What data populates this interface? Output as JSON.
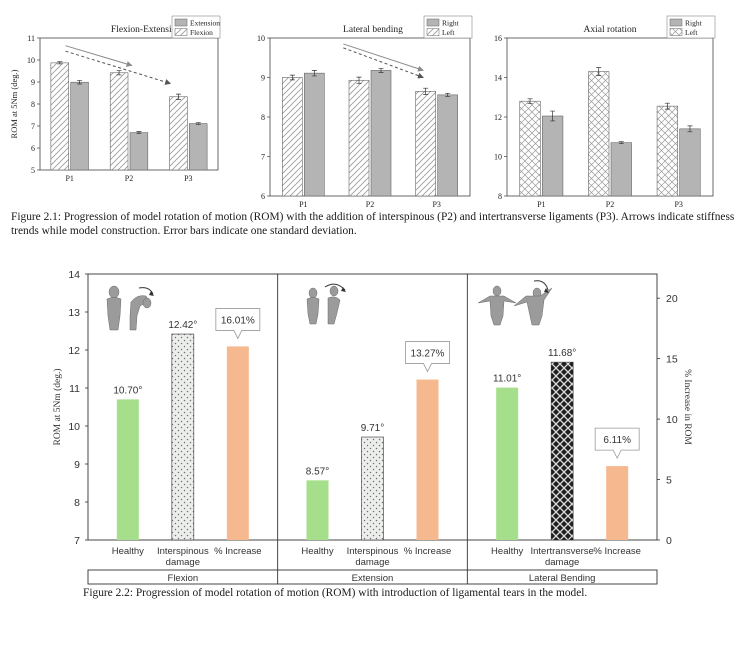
{
  "top": {
    "ylabel": "ROM at 5Nm (deg.)",
    "panels": [
      {
        "title": "Flexion-Extension",
        "ylim": [
          5,
          11
        ],
        "yticks": [
          5,
          6,
          7,
          8,
          9,
          10,
          11
        ],
        "categories": [
          "P1",
          "P2",
          "P3"
        ],
        "series": [
          {
            "name": "Flexion",
            "pattern": "diag",
            "values": [
              9.87,
              9.42,
              8.33
            ],
            "errors": [
              0.05,
              0.1,
              0.12
            ]
          },
          {
            "name": "Extension",
            "pattern": "solid",
            "values": [
              8.99,
              6.7,
              7.11
            ],
            "errors": [
              0.08,
              0.05,
              0.04
            ]
          }
        ],
        "legend_order": [
          "Extension",
          "Flexion"
        ],
        "arrows": [
          {
            "style": "solid",
            "from": [
              0.43,
              10.65
            ],
            "to": [
              1.55,
              9.75
            ]
          },
          {
            "style": "dashed",
            "from": [
              0.43,
              10.4
            ],
            "to": [
              2.2,
              8.93
            ]
          }
        ]
      },
      {
        "title": "Lateral bending",
        "ylim": [
          6,
          10
        ],
        "yticks": [
          6,
          7,
          8,
          9,
          10
        ],
        "categories": [
          "P1",
          "P2",
          "P3"
        ],
        "series": [
          {
            "name": "Left",
            "pattern": "diag",
            "values": [
              9.0,
              8.93,
              8.65
            ],
            "errors": [
              0.06,
              0.08,
              0.08
            ]
          },
          {
            "name": "Right",
            "pattern": "solid",
            "values": [
              9.11,
              9.18,
              8.56
            ],
            "errors": [
              0.07,
              0.05,
              0.04
            ]
          }
        ],
        "legend_order": [
          "Right",
          "Left"
        ],
        "arrows": [
          {
            "style": "solid",
            "from": [
              1.1,
              9.85
            ],
            "to": [
              2.3,
              9.18
            ]
          },
          {
            "style": "dashed",
            "from": [
              1.1,
              9.75
            ],
            "to": [
              2.3,
              9.0
            ]
          }
        ]
      },
      {
        "title": "Axial rotation",
        "ylim": [
          8,
          16
        ],
        "yticks": [
          8,
          10,
          12,
          14,
          16
        ],
        "categories": [
          "P1",
          "P2",
          "P3"
        ],
        "series": [
          {
            "name": "Left",
            "pattern": "cross",
            "values": [
              12.8,
              14.3,
              12.55
            ],
            "errors": [
              0.12,
              0.2,
              0.15
            ]
          },
          {
            "name": "Right",
            "pattern": "solid",
            "values": [
              12.05,
              10.7,
              11.4
            ],
            "errors": [
              0.25,
              0.05,
              0.15
            ]
          }
        ],
        "legend_order": [
          "Right",
          "Left"
        ],
        "arrows": []
      }
    ],
    "caption": "Figure 2.1: Progression of model rotation of motion (ROM) with the addition of interspinous (P2) and intertransverse ligaments (P3). Arrows indicate stiffness trends while model construction. Error bars indicate one standard deviation."
  },
  "bottom": {
    "ylabel_left": "ROM at 5Nm (deg.)",
    "ylabel_right": "% Increase in ROM",
    "ylim_left": [
      7,
      14
    ],
    "yticks_left": [
      7,
      8,
      9,
      10,
      11,
      12,
      13,
      14
    ],
    "ylim_right": [
      0,
      22
    ],
    "yticks_right": [
      0,
      5,
      10,
      15,
      20
    ],
    "colors": {
      "healthy": "#a5df8b",
      "increase": "#f6b98f",
      "dots": "#c8cac8"
    },
    "groups": [
      {
        "name": "Flexion",
        "bars": [
          {
            "category": "Healthy",
            "value": 10.7,
            "label": "10.70°",
            "style": "healthy"
          },
          {
            "category": "Interspinous damage",
            "value": 12.42,
            "label": "12.42°",
            "style": "dots"
          },
          {
            "category": "% Increase",
            "value": 16.01,
            "label": "16.01%",
            "style": "increase",
            "axis": "right"
          }
        ]
      },
      {
        "name": "Extension",
        "bars": [
          {
            "category": "Healthy",
            "value": 8.57,
            "label": "8.57°",
            "style": "healthy"
          },
          {
            "category": "Interspinous damage",
            "value": 9.71,
            "label": "9.71°",
            "style": "dots"
          },
          {
            "category": "% Increase",
            "value": 13.27,
            "label": "13.27%",
            "style": "increase",
            "axis": "right"
          }
        ]
      },
      {
        "name": "Lateral Bending",
        "bars": [
          {
            "category": "Healthy",
            "value": 11.01,
            "label": "11.01°",
            "style": "healthy"
          },
          {
            "category": "Intertransverse damage",
            "value": 11.68,
            "label": "11.68°",
            "style": "weave"
          },
          {
            "category": "% Increase",
            "value": 6.11,
            "label": "6.11%",
            "style": "increase",
            "axis": "right"
          }
        ]
      }
    ],
    "caption": "Figure 2.2: Progression of model rotation of motion (ROM) with introduction of ligamental tears in the model."
  },
  "chart_data": [
    {
      "type": "bar",
      "title": "Flexion-Extension",
      "categories": [
        "P1",
        "P2",
        "P3"
      ],
      "ylabel": "ROM at 5Nm (deg.)",
      "ylim": [
        5,
        11
      ],
      "series": [
        {
          "name": "Flexion",
          "values": [
            9.87,
            9.42,
            8.33
          ]
        },
        {
          "name": "Extension",
          "values": [
            8.99,
            6.7,
            7.11
          ]
        }
      ]
    },
    {
      "type": "bar",
      "title": "Lateral bending",
      "categories": [
        "P1",
        "P2",
        "P3"
      ],
      "ylim": [
        6,
        10
      ],
      "series": [
        {
          "name": "Left",
          "values": [
            9.0,
            8.93,
            8.65
          ]
        },
        {
          "name": "Right",
          "values": [
            9.11,
            9.18,
            8.56
          ]
        }
      ]
    },
    {
      "type": "bar",
      "title": "Axial rotation",
      "categories": [
        "P1",
        "P2",
        "P3"
      ],
      "ylim": [
        8,
        16
      ],
      "series": [
        {
          "name": "Left",
          "values": [
            12.8,
            14.3,
            12.55
          ]
        },
        {
          "name": "Right",
          "values": [
            12.05,
            10.7,
            11.4
          ]
        }
      ]
    },
    {
      "type": "bar",
      "categories": [
        "Flexion",
        "Extension",
        "Lateral Bending"
      ],
      "ylabel": "ROM at 5Nm (deg.)",
      "ylim": [
        7,
        14
      ],
      "y2label": "% Increase in ROM",
      "y2lim": [
        0,
        22
      ],
      "series": [
        {
          "name": "Healthy",
          "values": [
            10.7,
            8.57,
            11.01
          ]
        },
        {
          "name": "Interspinous damage",
          "values": [
            12.42,
            9.71,
            null
          ]
        },
        {
          "name": "Intertransverse damage",
          "values": [
            null,
            null,
            11.68
          ]
        },
        {
          "name": "% Increase",
          "values": [
            16.01,
            13.27,
            6.11
          ]
        }
      ]
    }
  ]
}
